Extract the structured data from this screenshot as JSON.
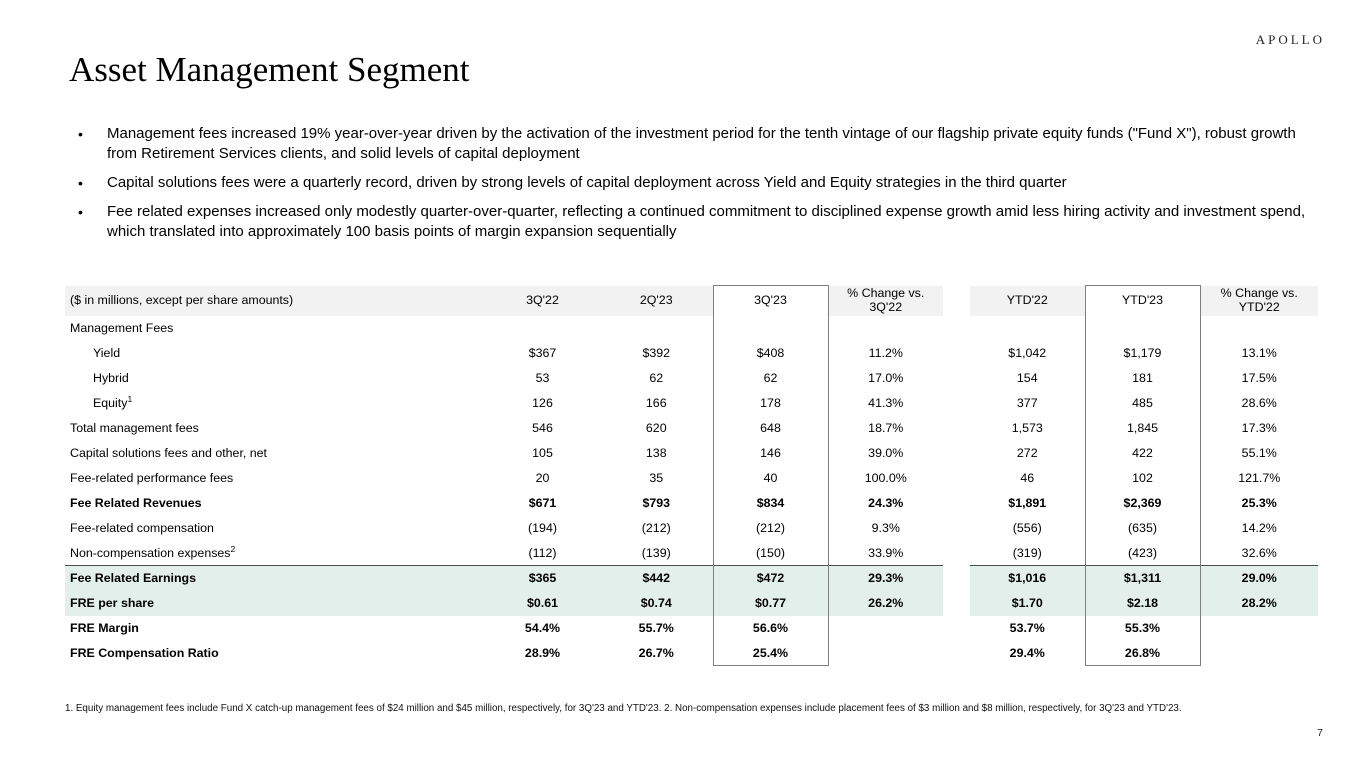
{
  "brand": {
    "logo_text": "APOLLO"
  },
  "slide": {
    "title": "Asset Management Segment",
    "page_number": "7",
    "bullet_glyph": "•",
    "bullets": [
      "Management fees increased 19% year-over-year driven by the activation of the investment period for the tenth vintage of our flagship private equity funds (\"Fund X\"), robust growth from Retirement Services clients, and solid levels of capital deployment",
      "Capital solutions fees were a quarterly record, driven by strong levels of capital deployment across Yield and Equity strategies in the third quarter",
      "Fee related expenses increased only modestly quarter-over-quarter, reflecting a continued commitment to disciplined expense growth amid less hiring activity and investment spend, which translated into approximately 100 basis points of margin expansion sequentially"
    ],
    "footnote": "1. Equity management fees include Fund X catch-up management fees of $24 million and $45 million, respectively, for 3Q'23 and YTD'23. 2. Non-compensation expenses include placement fees of $3 million and $8 million, respectively, for 3Q'23 and YTD'23."
  },
  "colors": {
    "header_bg": "#f2f2f2",
    "highlight_bg": "#e3efeb",
    "box_border": "#7f7f7f",
    "rule": "#4d4d4d"
  },
  "table": {
    "unit_label": "($ in millions, except per share amounts)",
    "columns": [
      "3Q'22",
      "2Q'23",
      "3Q'23",
      "% Change vs.\n3Q'22",
      "YTD'22",
      "YTD'23",
      "% Change vs.\nYTD'22"
    ],
    "rows": [
      {
        "label": "Management Fees",
        "values": [
          "",
          "",
          "",
          "",
          "",
          "",
          ""
        ]
      },
      {
        "label": "Yield",
        "indent": 1,
        "values": [
          "$367",
          "$392",
          "$408",
          "11.2%",
          "$1,042",
          "$1,179",
          "13.1%"
        ]
      },
      {
        "label": "Hybrid",
        "indent": 1,
        "values": [
          "53",
          "62",
          "62",
          "17.0%",
          "154",
          "181",
          "17.5%"
        ]
      },
      {
        "label": "Equity",
        "sup": "1",
        "indent": 1,
        "values": [
          "126",
          "166",
          "178",
          "41.3%",
          "377",
          "485",
          "28.6%"
        ]
      },
      {
        "label": "Total management fees",
        "values": [
          "546",
          "620",
          "648",
          "18.7%",
          "1,573",
          "1,845",
          "17.3%"
        ]
      },
      {
        "label": "Capital solutions fees and other, net",
        "values": [
          "105",
          "138",
          "146",
          "39.0%",
          "272",
          "422",
          "55.1%"
        ]
      },
      {
        "label": "Fee-related performance fees",
        "values": [
          "20",
          "35",
          "40",
          "100.0%",
          "46",
          "102",
          "121.7%"
        ]
      },
      {
        "label": "Fee Related Revenues",
        "bold": true,
        "values": [
          "$671",
          "$793",
          "$834",
          "24.3%",
          "$1,891",
          "$2,369",
          "25.3%"
        ]
      },
      {
        "label": "Fee-related compensation",
        "values": [
          "(194)",
          "(212)",
          "(212)",
          "9.3%",
          "(556)",
          "(635)",
          "14.2%"
        ]
      },
      {
        "label": "Non-compensation expenses",
        "sup": "2",
        "values": [
          "(112)",
          "(139)",
          "(150)",
          "33.9%",
          "(319)",
          "(423)",
          "32.6%"
        ]
      },
      {
        "label": "Fee Related Earnings",
        "bold": true,
        "highlight": true,
        "topline": true,
        "values": [
          "$365",
          "$442",
          "$472",
          "29.3%",
          "$1,016",
          "$1,311",
          "29.0%"
        ]
      },
      {
        "label": "FRE per share",
        "bold": true,
        "highlight": true,
        "values": [
          "$0.61",
          "$0.74",
          "$0.77",
          "26.2%",
          "$1.70",
          "$2.18",
          "28.2%"
        ]
      },
      {
        "label": "FRE Margin",
        "bold": true,
        "values": [
          "54.4%",
          "55.7%",
          "56.6%",
          "",
          "53.7%",
          "55.3%",
          ""
        ]
      },
      {
        "label": "FRE Compensation Ratio",
        "bold": true,
        "values": [
          "28.9%",
          "26.7%",
          "25.4%",
          "",
          "29.4%",
          "26.8%",
          ""
        ]
      }
    ]
  }
}
